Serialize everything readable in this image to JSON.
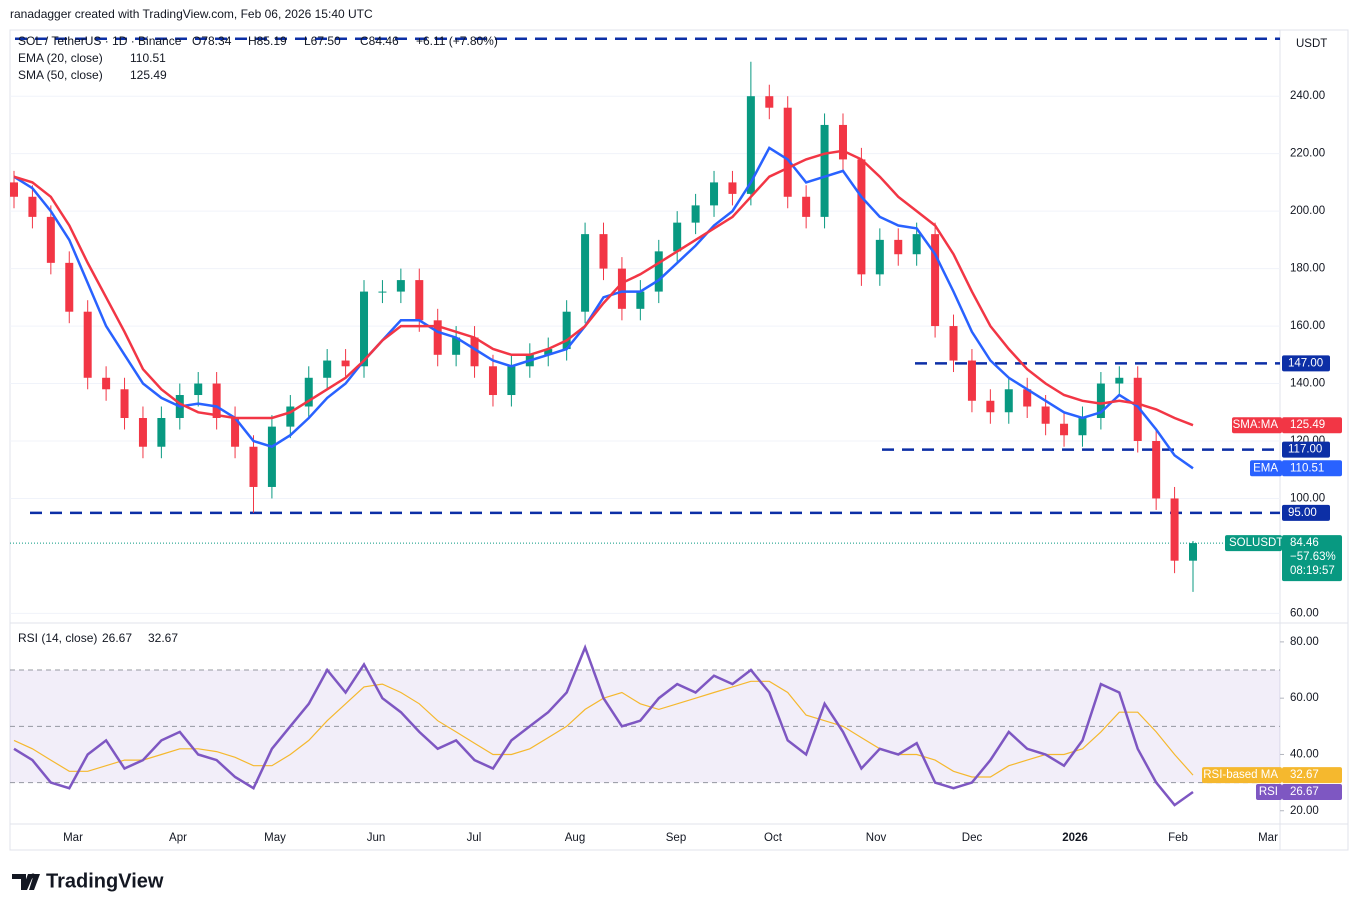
{
  "header": "ranadagger created with TradingView.com, Feb 06, 2026 15:40 UTC",
  "footer": "TradingView",
  "chart_data": {
    "type": "candlestick",
    "title": "SOL / TetherUS · 1D · Binance",
    "ohlc_text": [
      "O78.34",
      "H85.19",
      "L67.50",
      "C84.46",
      "+6.11 (+7.80%)"
    ],
    "currency": "USDT",
    "up_color": "#089981",
    "down_color": "#f23645",
    "open": [
      210,
      205,
      198,
      182,
      165,
      142,
      138,
      128,
      118,
      128,
      136,
      140,
      128,
      118,
      104,
      125,
      132,
      142,
      148,
      146,
      172,
      172,
      176,
      162,
      150,
      156,
      146,
      136,
      146,
      150,
      152,
      165,
      192,
      180,
      166,
      172,
      186,
      196,
      202,
      210,
      206,
      240,
      236,
      205,
      198,
      230,
      218,
      178,
      190,
      185,
      192,
      160,
      148,
      134,
      130,
      138,
      132,
      126,
      122,
      128,
      140,
      142,
      120,
      100,
      78.34
    ],
    "high": [
      214,
      209,
      202,
      186,
      169,
      146,
      142,
      132,
      132,
      140,
      144,
      144,
      132,
      122,
      129,
      136,
      146,
      152,
      152,
      176,
      176,
      180,
      180,
      166,
      160,
      160,
      150,
      150,
      154,
      156,
      169,
      196,
      196,
      184,
      176,
      190,
      200,
      206,
      214,
      214,
      252,
      244,
      240,
      209,
      234,
      234,
      222,
      194,
      194,
      196,
      196,
      164,
      152,
      138,
      142,
      142,
      136,
      130,
      132,
      144,
      146,
      146,
      124,
      104,
      85.19
    ],
    "low": [
      201,
      194,
      178,
      161,
      138,
      134,
      124,
      114,
      114,
      124,
      132,
      124,
      114,
      95,
      100,
      121,
      128,
      138,
      142,
      142,
      168,
      168,
      158,
      146,
      146,
      142,
      132,
      132,
      142,
      146,
      148,
      161,
      176,
      162,
      162,
      168,
      182,
      192,
      198,
      202,
      202,
      232,
      201,
      194,
      194,
      214,
      174,
      174,
      181,
      181,
      156,
      144,
      130,
      126,
      126,
      128,
      122,
      118,
      118,
      124,
      136,
      116,
      96,
      74,
      67.5
    ],
    "close": [
      205,
      198,
      182,
      165,
      142,
      138,
      128,
      118,
      128,
      136,
      140,
      128,
      118,
      104,
      125,
      132,
      142,
      148,
      146,
      172,
      172,
      176,
      162,
      150,
      156,
      146,
      136,
      146,
      150,
      152,
      165,
      192,
      180,
      166,
      172,
      186,
      196,
      202,
      210,
      206,
      240,
      236,
      205,
      198,
      230,
      218,
      178,
      190,
      185,
      192,
      160,
      148,
      134,
      130,
      138,
      132,
      126,
      122,
      128,
      140,
      142,
      120,
      100,
      78.34,
      84.46
    ],
    "last_tag": "SOLUSDT",
    "last_change": "−57.63%",
    "countdown": "08:19:57",
    "series": [
      {
        "name": "EMA (20, close)",
        "tag": "EMA",
        "color": "#2962ff",
        "values": [
          212,
          208,
          200,
          190,
          175,
          160,
          150,
          140,
          135,
          132,
          133,
          132,
          128,
          120,
          118,
          122,
          128,
          135,
          140,
          148,
          155,
          162,
          162,
          158,
          156,
          152,
          148,
          146,
          148,
          150,
          152,
          160,
          170,
          172,
          172,
          176,
          182,
          188,
          195,
          200,
          210,
          222,
          218,
          210,
          212,
          214,
          205,
          198,
          195,
          194,
          185,
          172,
          158,
          148,
          142,
          138,
          134,
          130,
          128,
          130,
          136,
          132,
          124,
          115,
          110.51
        ]
      },
      {
        "name": "SMA (50, close)",
        "tag": "SMA:MA",
        "color": "#f23645",
        "values": [
          212,
          210,
          205,
          195,
          182,
          170,
          158,
          145,
          138,
          133,
          130,
          129,
          128,
          128,
          128,
          130,
          134,
          138,
          142,
          148,
          155,
          160,
          160,
          160,
          158,
          156,
          152,
          150,
          150,
          152,
          155,
          160,
          168,
          175,
          178,
          182,
          186,
          190,
          194,
          198,
          205,
          212,
          215,
          218,
          220,
          221,
          218,
          212,
          205,
          200,
          195,
          185,
          172,
          160,
          152,
          145,
          140,
          136,
          134,
          133,
          134,
          133,
          131,
          128,
          125.49
        ]
      }
    ],
    "levels": [
      260,
      {
        "value": 147,
        "label": "147.00"
      },
      {
        "value": 117,
        "label": "117.00"
      },
      {
        "value": 95,
        "label": "95.00"
      }
    ],
    "level_color": "#0c2fa6",
    "ylim": [
      57,
      262
    ],
    "yticks": [
      {
        "value": 60,
        "label": "60.00"
      },
      {
        "value": 100,
        "label": "100.00"
      },
      {
        "value": 120,
        "label": "120.00"
      },
      {
        "value": 140,
        "label": "140.00"
      },
      {
        "value": 160,
        "label": "160.00"
      },
      {
        "value": 180,
        "label": "180.00"
      },
      {
        "value": 200,
        "label": "200.00"
      },
      {
        "value": 220,
        "label": "220.00"
      },
      {
        "value": 240,
        "label": "240.00"
      }
    ],
    "x_labels": [
      "Mar",
      "Apr",
      "May",
      "Jun",
      "Jul",
      "Aug",
      "Sep",
      "Oct",
      "Nov",
      "Dec",
      "2026",
      "Feb",
      "Mar"
    ],
    "rsi": {
      "name": "RSI (14, close)",
      "tag": "RSI",
      "color": "#7e57c2",
      "values": [
        42,
        38,
        30,
        28,
        40,
        45,
        35,
        38,
        45,
        48,
        40,
        38,
        32,
        28,
        42,
        50,
        58,
        70,
        62,
        72,
        60,
        55,
        48,
        42,
        45,
        38,
        35,
        45,
        50,
        55,
        62,
        78,
        60,
        50,
        52,
        60,
        65,
        62,
        68,
        65,
        70,
        62,
        45,
        40,
        58,
        48,
        35,
        42,
        40,
        44,
        30,
        28,
        30,
        38,
        48,
        42,
        40,
        36,
        45,
        65,
        62,
        42,
        30,
        22,
        26.67
      ],
      "ma_name": "RSI-based MA",
      "ma_color": "#f5b82e",
      "ma_values": [
        45,
        42,
        38,
        34,
        34,
        36,
        38,
        38,
        40,
        42,
        42,
        41,
        39,
        36,
        36,
        40,
        45,
        52,
        58,
        64,
        65,
        62,
        58,
        52,
        48,
        44,
        40,
        40,
        42,
        46,
        50,
        56,
        60,
        62,
        58,
        56,
        58,
        60,
        62,
        64,
        66,
        66,
        62,
        54,
        52,
        50,
        46,
        42,
        40,
        40,
        38,
        34,
        32,
        32,
        36,
        38,
        40,
        40,
        42,
        48,
        55,
        55,
        48,
        40,
        32.67
      ],
      "band": [
        30,
        70
      ],
      "mid": 50,
      "ylim": [
        16,
        86
      ],
      "yticks": [
        {
          "value": 20,
          "label": "20.00"
        },
        {
          "value": 40,
          "label": "40.00"
        },
        {
          "value": 60,
          "label": "60.00"
        },
        {
          "value": 80,
          "label": "80.00"
        }
      ]
    }
  }
}
